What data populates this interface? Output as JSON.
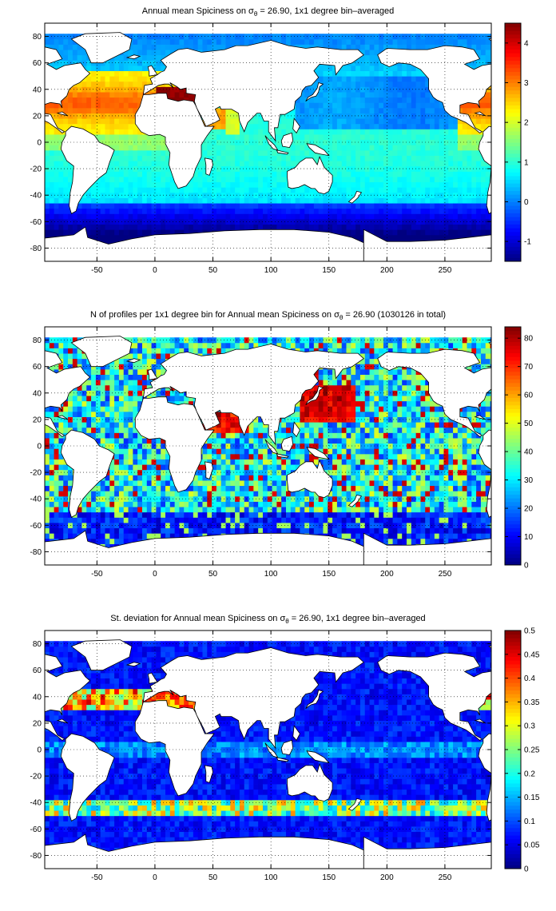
{
  "chart_data": [
    {
      "type": "heatmap",
      "title_prefix": "Annual mean Spiciness on ",
      "title_symbol": "σ",
      "title_subscript": "θ",
      "title_suffix": " = 26.90, 1x1 degree bin–averaged",
      "xlim": [
        -95,
        290
      ],
      "ylim": [
        -90,
        90
      ],
      "x_ticks": [
        -50,
        0,
        50,
        100,
        150,
        200,
        250
      ],
      "y_ticks": [
        80,
        60,
        40,
        20,
        0,
        -20,
        -40,
        -60,
        -80
      ],
      "colorbar_lim": [
        -1.5,
        4.5
      ],
      "colorbar_ticks": [
        4,
        3,
        2,
        1,
        0,
        -1
      ],
      "colormap": "jet",
      "grid": "dotted",
      "field": "spiciness"
    },
    {
      "type": "heatmap",
      "title_prefix": "N of profiles per 1x1 degree bin for Annual mean Spiciness on ",
      "title_symbol": "σ",
      "title_subscript": "θ",
      "title_suffix": " = 26.90 (1030126 in total)",
      "xlim": [
        -95,
        290
      ],
      "ylim": [
        -90,
        90
      ],
      "x_ticks": [
        -50,
        0,
        50,
        100,
        150,
        200,
        250
      ],
      "y_ticks": [
        80,
        60,
        40,
        20,
        0,
        -20,
        -40,
        -60,
        -80
      ],
      "colorbar_lim": [
        0,
        84
      ],
      "colorbar_ticks": [
        80,
        70,
        60,
        50,
        40,
        30,
        20,
        10,
        0
      ],
      "colormap": "jet",
      "grid": "dotted",
      "field": "profile-count"
    },
    {
      "type": "heatmap",
      "title_prefix": "St. deviation for Annual mean Spiciness on ",
      "title_symbol": "σ",
      "title_subscript": "θ",
      "title_suffix": " = 26.90, 1x1 degree bin–averaged",
      "xlim": [
        -95,
        290
      ],
      "ylim": [
        -90,
        90
      ],
      "x_ticks": [
        -50,
        0,
        50,
        100,
        150,
        200,
        250
      ],
      "y_ticks": [
        80,
        60,
        40,
        20,
        0,
        -20,
        -40,
        -60,
        -80
      ],
      "colorbar_lim": [
        0,
        0.5
      ],
      "colorbar_ticks": [
        0.5,
        0.45,
        0.4,
        0.35,
        0.3,
        0.25,
        0.2,
        0.15,
        0.1,
        0.05,
        0
      ],
      "colormap": "jet",
      "grid": "dotted",
      "field": "std-deviation"
    }
  ]
}
